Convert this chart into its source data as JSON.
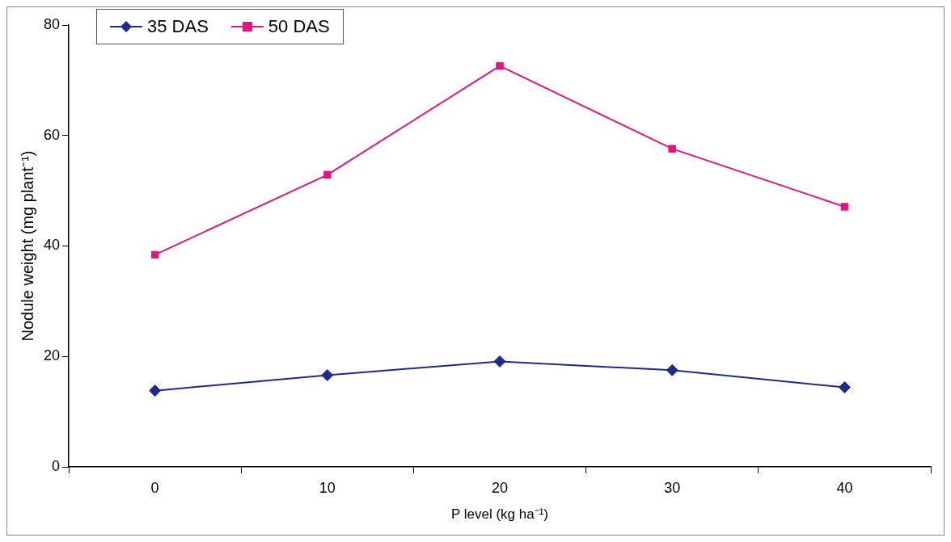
{
  "chart_data": {
    "type": "line",
    "xlabel": "P level (kg ha⁻¹)",
    "ylabel": "Nodule weight (mg plant⁻¹)",
    "categories": [
      "0",
      "10",
      "20",
      "30",
      "40"
    ],
    "series": [
      {
        "name": "35 DAS",
        "color": "#1f2a8c",
        "marker": "diamond",
        "values": [
          13.8,
          16.6,
          19.1,
          17.5,
          14.4
        ]
      },
      {
        "name": "50 DAS",
        "color": "#e0157f",
        "marker": "square",
        "values": [
          38.4,
          52.9,
          72.6,
          57.6,
          47.1
        ]
      }
    ],
    "ylim": [
      0,
      80
    ],
    "yticks": [
      0,
      20,
      40,
      60,
      80
    ],
    "grid": false,
    "legend": "top left",
    "line_style": "solid"
  }
}
